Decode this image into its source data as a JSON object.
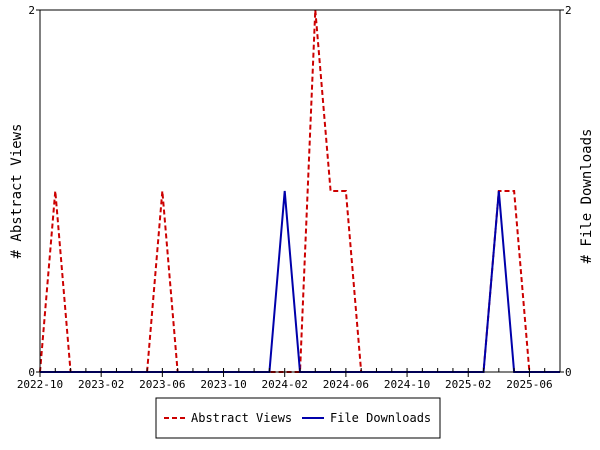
{
  "chart_data": {
    "type": "line",
    "title": "",
    "x_ticks": [
      "2022-10",
      "2023-02",
      "2023-06",
      "2023-10",
      "2024-02",
      "2024-06",
      "2024-10",
      "2025-02",
      "2025-06"
    ],
    "xlim": [
      "2022-10",
      "2025-08"
    ],
    "ylabel_left": "# Abstract Views",
    "ylabel_right": "# File Downloads",
    "ylim_left": [
      0,
      2
    ],
    "ylim_right": [
      0,
      2
    ],
    "y_ticks_left": [
      "0",
      "2"
    ],
    "y_ticks_right": [
      "0",
      "2"
    ],
    "grid": false,
    "legend_position": "bottom",
    "series": [
      {
        "name": "Abstract Views",
        "axis": "left",
        "color": "#cc0000",
        "dash": "dashed",
        "points": [
          [
            "2022-10",
            0
          ],
          [
            "2022-11",
            1
          ],
          [
            "2022-12",
            0
          ],
          [
            "2023-01",
            0
          ],
          [
            "2023-02",
            0
          ],
          [
            "2023-03",
            0
          ],
          [
            "2023-04",
            0
          ],
          [
            "2023-05",
            0
          ],
          [
            "2023-06",
            1
          ],
          [
            "2023-07",
            0
          ],
          [
            "2023-08",
            0
          ],
          [
            "2023-09",
            0
          ],
          [
            "2023-10",
            0
          ],
          [
            "2023-11",
            0
          ],
          [
            "2023-12",
            0
          ],
          [
            "2024-01",
            0
          ],
          [
            "2024-02",
            0
          ],
          [
            "2024-03",
            0
          ],
          [
            "2024-04",
            2
          ],
          [
            "2024-05",
            1
          ],
          [
            "2024-06",
            1
          ],
          [
            "2024-07",
            0
          ],
          [
            "2024-08",
            0
          ],
          [
            "2024-09",
            0
          ],
          [
            "2024-10",
            0
          ],
          [
            "2024-11",
            0
          ],
          [
            "2024-12",
            0
          ],
          [
            "2025-01",
            0
          ],
          [
            "2025-02",
            0
          ],
          [
            "2025-03",
            0
          ],
          [
            "2025-04",
            1
          ],
          [
            "2025-05",
            1
          ],
          [
            "2025-06",
            0
          ],
          [
            "2025-07",
            0
          ],
          [
            "2025-08",
            0
          ]
        ]
      },
      {
        "name": "File Downloads",
        "axis": "right",
        "color": "#0000aa",
        "dash": "solid",
        "points": [
          [
            "2022-10",
            0
          ],
          [
            "2022-11",
            0
          ],
          [
            "2022-12",
            0
          ],
          [
            "2023-01",
            0
          ],
          [
            "2023-02",
            0
          ],
          [
            "2023-03",
            0
          ],
          [
            "2023-04",
            0
          ],
          [
            "2023-05",
            0
          ],
          [
            "2023-06",
            0
          ],
          [
            "2023-07",
            0
          ],
          [
            "2023-08",
            0
          ],
          [
            "2023-09",
            0
          ],
          [
            "2023-10",
            0
          ],
          [
            "2023-11",
            0
          ],
          [
            "2023-12",
            0
          ],
          [
            "2024-01",
            0
          ],
          [
            "2024-02",
            1
          ],
          [
            "2024-03",
            0
          ],
          [
            "2024-04",
            0
          ],
          [
            "2024-05",
            0
          ],
          [
            "2024-06",
            0
          ],
          [
            "2024-07",
            0
          ],
          [
            "2024-08",
            0
          ],
          [
            "2024-09",
            0
          ],
          [
            "2024-10",
            0
          ],
          [
            "2024-11",
            0
          ],
          [
            "2024-12",
            0
          ],
          [
            "2025-01",
            0
          ],
          [
            "2025-02",
            0
          ],
          [
            "2025-03",
            0
          ],
          [
            "2025-04",
            1
          ],
          [
            "2025-05",
            0
          ],
          [
            "2025-06",
            0
          ],
          [
            "2025-07",
            0
          ],
          [
            "2025-08",
            0
          ]
        ]
      }
    ]
  }
}
